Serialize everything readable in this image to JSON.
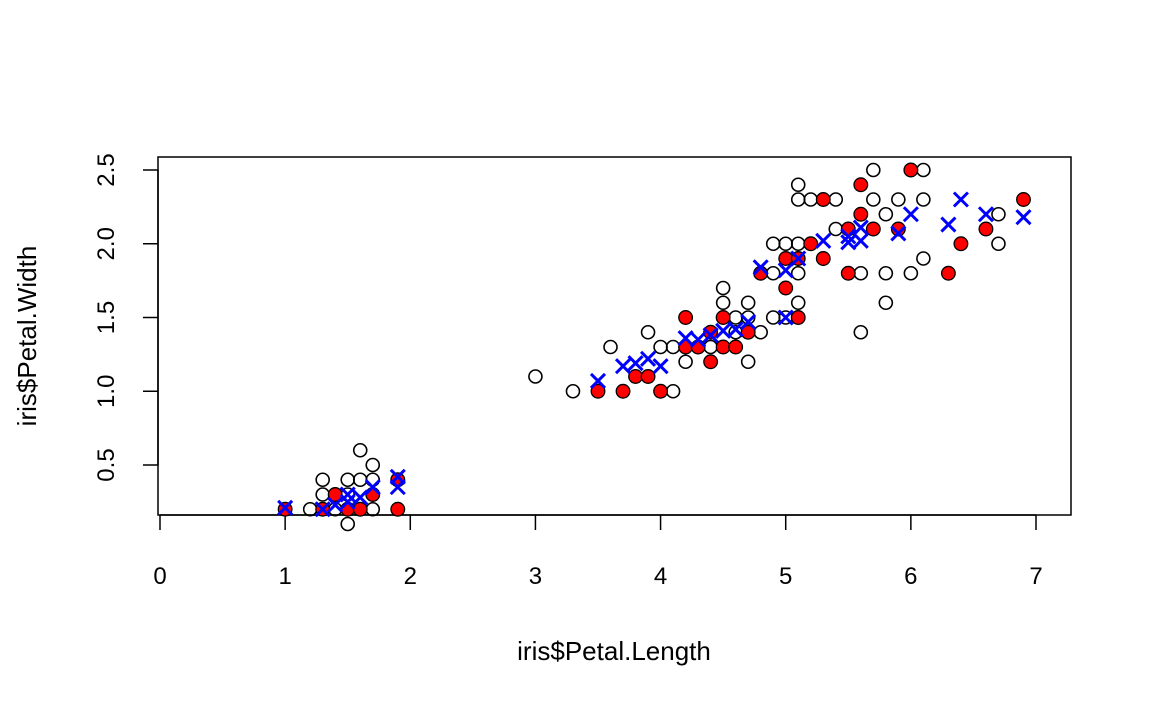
{
  "chart_data": {
    "type": "scatter",
    "title": "",
    "xlabel": "iris$Petal.Length",
    "ylabel": "iris$Petal.Width",
    "xlim": [
      0,
      7.2
    ],
    "ylim": [
      0.15,
      2.57
    ],
    "xticks": [
      "0",
      "1",
      "2",
      "3",
      "4",
      "5",
      "6",
      "7"
    ],
    "yticks": [
      "0.5",
      "1.0",
      "1.5",
      "2.0",
      "2.5"
    ],
    "grid": false,
    "legend": "none",
    "series": [
      {
        "marker": "open-circle",
        "color": "#000000",
        "points": [
          [
            1.2,
            0.2
          ],
          [
            1.3,
            0.3
          ],
          [
            1.3,
            0.4
          ],
          [
            1.4,
            0.2
          ],
          [
            1.4,
            0.3
          ],
          [
            1.5,
            0.1
          ],
          [
            1.5,
            0.2
          ],
          [
            1.5,
            0.3
          ],
          [
            1.5,
            0.4
          ],
          [
            1.6,
            0.2
          ],
          [
            1.6,
            0.4
          ],
          [
            1.6,
            0.6
          ],
          [
            1.7,
            0.2
          ],
          [
            1.7,
            0.3
          ],
          [
            1.7,
            0.4
          ],
          [
            1.7,
            0.5
          ],
          [
            1.9,
            0.2
          ],
          [
            1.9,
            0.4
          ],
          [
            3.0,
            1.1
          ],
          [
            3.3,
            1.0
          ],
          [
            3.6,
            1.3
          ],
          [
            3.9,
            1.4
          ],
          [
            4.0,
            1.3
          ],
          [
            4.1,
            1.0
          ],
          [
            4.1,
            1.3
          ],
          [
            4.2,
            1.2
          ],
          [
            4.2,
            1.3
          ],
          [
            4.3,
            1.3
          ],
          [
            4.4,
            1.3
          ],
          [
            4.5,
            1.5
          ],
          [
            4.5,
            1.6
          ],
          [
            4.5,
            1.7
          ],
          [
            4.6,
            1.4
          ],
          [
            4.6,
            1.5
          ],
          [
            4.7,
            1.2
          ],
          [
            4.7,
            1.5
          ],
          [
            4.7,
            1.6
          ],
          [
            4.8,
            1.4
          ],
          [
            4.8,
            1.8
          ],
          [
            4.9,
            1.5
          ],
          [
            4.9,
            1.8
          ],
          [
            4.9,
            2.0
          ],
          [
            5.0,
            1.5
          ],
          [
            5.0,
            2.0
          ],
          [
            5.1,
            1.5
          ],
          [
            5.1,
            1.6
          ],
          [
            5.1,
            1.8
          ],
          [
            5.1,
            1.9
          ],
          [
            5.1,
            2.0
          ],
          [
            5.1,
            2.3
          ],
          [
            5.1,
            2.4
          ],
          [
            5.2,
            2.3
          ],
          [
            5.3,
            1.9
          ],
          [
            5.4,
            2.1
          ],
          [
            5.4,
            2.3
          ],
          [
            5.5,
            1.8
          ],
          [
            5.6,
            1.4
          ],
          [
            5.6,
            1.8
          ],
          [
            5.6,
            2.2
          ],
          [
            5.7,
            2.1
          ],
          [
            5.7,
            2.3
          ],
          [
            5.7,
            2.5
          ],
          [
            5.8,
            1.6
          ],
          [
            5.8,
            1.8
          ],
          [
            5.8,
            2.2
          ],
          [
            5.9,
            2.3
          ],
          [
            6.0,
            1.8
          ],
          [
            6.0,
            2.5
          ],
          [
            6.1,
            1.9
          ],
          [
            6.1,
            2.3
          ],
          [
            6.1,
            2.5
          ],
          [
            6.7,
            2.0
          ],
          [
            6.7,
            2.2
          ]
        ]
      },
      {
        "marker": "filled-circle",
        "color": "#ff0000",
        "points": [
          [
            1.0,
            0.2
          ],
          [
            1.3,
            0.2
          ],
          [
            1.4,
            0.3
          ],
          [
            1.5,
            0.2
          ],
          [
            1.6,
            0.2
          ],
          [
            1.7,
            0.3
          ],
          [
            1.9,
            0.2
          ],
          [
            1.9,
            0.4
          ],
          [
            3.5,
            1.0
          ],
          [
            3.7,
            1.0
          ],
          [
            3.8,
            1.1
          ],
          [
            3.9,
            1.1
          ],
          [
            4.0,
            1.0
          ],
          [
            4.2,
            1.3
          ],
          [
            4.2,
            1.5
          ],
          [
            4.3,
            1.3
          ],
          [
            4.4,
            1.2
          ],
          [
            4.4,
            1.4
          ],
          [
            4.5,
            1.3
          ],
          [
            4.5,
            1.5
          ],
          [
            4.6,
            1.3
          ],
          [
            4.7,
            1.4
          ],
          [
            4.8,
            1.8
          ],
          [
            5.0,
            1.7
          ],
          [
            5.0,
            1.9
          ],
          [
            5.1,
            1.5
          ],
          [
            5.1,
            1.9
          ],
          [
            5.2,
            2.0
          ],
          [
            5.3,
            1.9
          ],
          [
            5.3,
            2.3
          ],
          [
            5.5,
            1.8
          ],
          [
            5.5,
            2.1
          ],
          [
            5.6,
            2.2
          ],
          [
            5.6,
            2.4
          ],
          [
            5.7,
            2.1
          ],
          [
            5.9,
            2.1
          ],
          [
            6.0,
            2.5
          ],
          [
            6.3,
            1.8
          ],
          [
            6.4,
            2.0
          ],
          [
            6.6,
            2.1
          ],
          [
            6.9,
            2.3
          ]
        ]
      },
      {
        "marker": "cross",
        "color": "#0000ff",
        "points": [
          [
            1.0,
            0.21
          ],
          [
            1.3,
            0.2
          ],
          [
            1.4,
            0.23
          ],
          [
            1.5,
            0.25
          ],
          [
            1.5,
            0.3
          ],
          [
            1.6,
            0.28
          ],
          [
            1.7,
            0.35
          ],
          [
            1.9,
            0.35
          ],
          [
            1.9,
            0.42
          ],
          [
            3.5,
            1.07
          ],
          [
            3.7,
            1.17
          ],
          [
            3.8,
            1.19
          ],
          [
            3.9,
            1.22
          ],
          [
            4.0,
            1.17
          ],
          [
            4.2,
            1.36
          ],
          [
            4.3,
            1.35
          ],
          [
            4.4,
            1.38
          ],
          [
            4.5,
            1.41
          ],
          [
            4.6,
            1.42
          ],
          [
            4.7,
            1.47
          ],
          [
            4.8,
            1.84
          ],
          [
            5.0,
            1.5
          ],
          [
            5.0,
            1.82
          ],
          [
            5.1,
            1.9
          ],
          [
            5.3,
            2.02
          ],
          [
            5.5,
            2.01
          ],
          [
            5.5,
            2.05
          ],
          [
            5.6,
            2.02
          ],
          [
            5.6,
            2.11
          ],
          [
            5.9,
            2.07
          ],
          [
            6.0,
            2.2
          ],
          [
            6.3,
            2.13
          ],
          [
            6.4,
            2.3
          ],
          [
            6.6,
            2.2
          ],
          [
            6.9,
            2.18
          ]
        ]
      }
    ]
  }
}
